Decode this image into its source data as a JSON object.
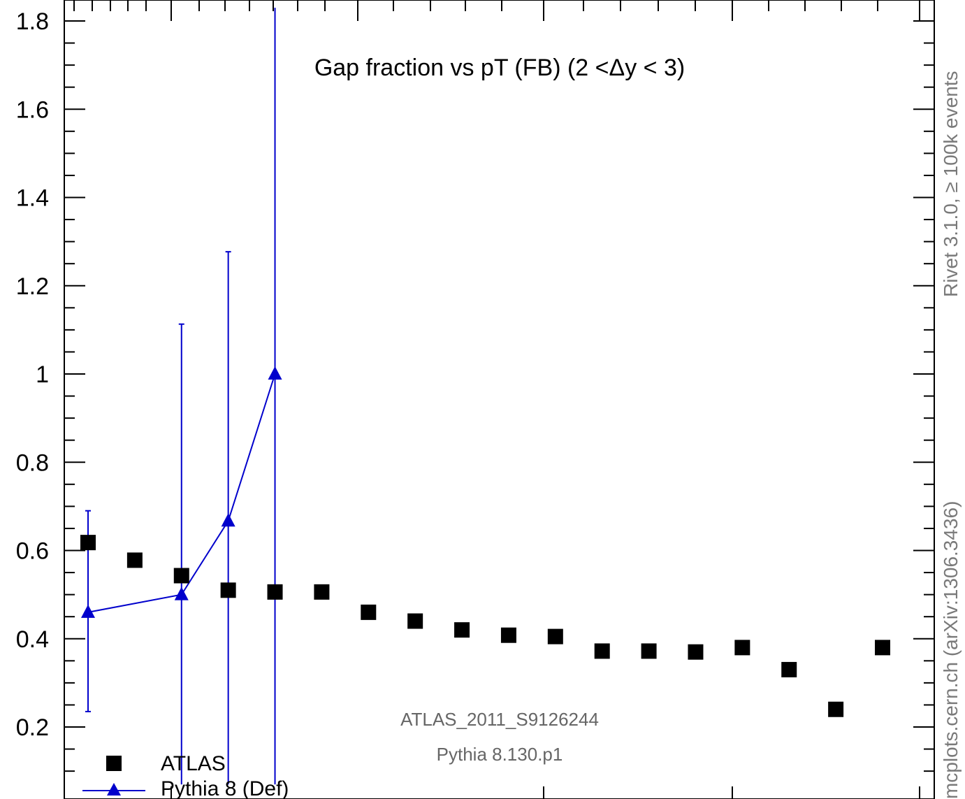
{
  "chart_data": {
    "type": "scatter",
    "title": "Gap fraction vs pT (FB) (2 <Δy < 3)",
    "xlabel": "",
    "ylabel": "",
    "ylim": [
      0.07,
      1.83
    ],
    "yticks": [
      0.2,
      0.4,
      0.6,
      0.8,
      1,
      1.2,
      1.4,
      1.6,
      1.8
    ],
    "ytick_labels": [
      "0.2",
      "0.4",
      "0.6",
      "0.8",
      "1",
      "1.2",
      "1.4",
      "1.6",
      "1.8"
    ],
    "series": [
      {
        "name": "ATLAS",
        "marker": "square",
        "color": "#000000",
        "points": [
          {
            "x": 75,
            "y": 0.618
          },
          {
            "x": 85,
            "y": 0.578
          },
          {
            "x": 95,
            "y": 0.543
          },
          {
            "x": 105,
            "y": 0.51
          },
          {
            "x": 115,
            "y": 0.506
          },
          {
            "x": 125,
            "y": 0.506
          },
          {
            "x": 135,
            "y": 0.46
          },
          {
            "x": 145,
            "y": 0.44
          },
          {
            "x": 155,
            "y": 0.42
          },
          {
            "x": 165,
            "y": 0.408
          },
          {
            "x": 175,
            "y": 0.405
          },
          {
            "x": 185,
            "y": 0.372
          },
          {
            "x": 195,
            "y": 0.372
          },
          {
            "x": 205,
            "y": 0.37
          },
          {
            "x": 215,
            "y": 0.38
          },
          {
            "x": 225,
            "y": 0.33
          },
          {
            "x": 235,
            "y": 0.24
          },
          {
            "x": 245,
            "y": 0.38
          }
        ]
      },
      {
        "name": "Pythia 8 (Def)",
        "marker": "triangle",
        "color": "#0000cc",
        "points": [
          {
            "x": 75,
            "y": 0.46,
            "ylo": 0.235,
            "yhi": 0.69
          },
          {
            "x": 95,
            "y": 0.5,
            "ylo": 0.07,
            "yhi": 1.113
          },
          {
            "x": 105,
            "y": 0.667,
            "ylo": 0.07,
            "yhi": 1.277
          },
          {
            "x": 115,
            "y": 1.0,
            "ylo": 0.07,
            "yhi": 1.83
          }
        ]
      }
    ],
    "legend": [
      {
        "label": "ATLAS",
        "marker": "square",
        "color": "#000000"
      },
      {
        "label": "Pythia 8 (Def)",
        "marker": "triangle",
        "color": "#0000cc"
      }
    ],
    "legend_position": "bottom-left",
    "annotations": [
      "ATLAS_2011_S9126244",
      "Pythia 8.130.p1"
    ],
    "side_labels": {
      "top": "Rivet 3.1.0, ≥ 100k events",
      "bottom": "mcplots.cern.ch (arXiv:1306.3436)"
    },
    "grid": false
  }
}
